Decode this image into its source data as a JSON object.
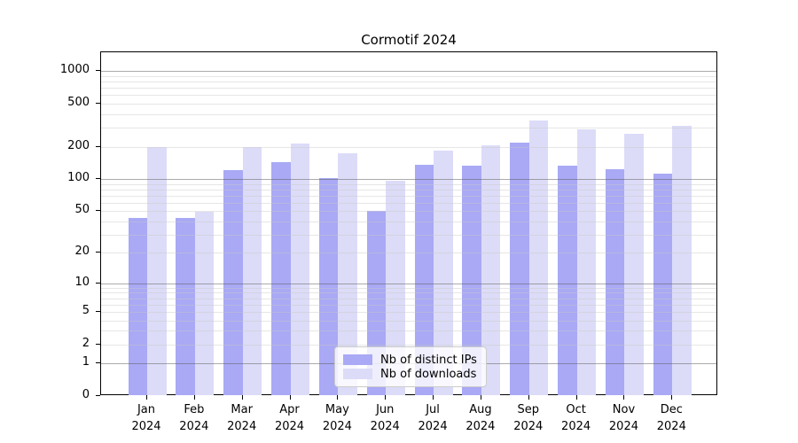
{
  "chart_data": {
    "type": "bar",
    "title": "Cormotif 2024",
    "categories": [
      "Jan",
      "Feb",
      "Mar",
      "Apr",
      "May",
      "Jun",
      "Jul",
      "Aug",
      "Sep",
      "Oct",
      "Nov",
      "Dec"
    ],
    "year_label": "2024",
    "series": [
      {
        "name": "Nb of distinct IPs",
        "color": "#a9a9f5",
        "values": [
          43,
          43,
          122,
          144,
          103,
          50,
          135,
          134,
          219,
          132,
          123,
          112
        ]
      },
      {
        "name": "Nb of downloads",
        "color": "#dcdcf8",
        "values": [
          200,
          49,
          200,
          212,
          173,
          97,
          184,
          206,
          352,
          291,
          264,
          312
        ]
      }
    ],
    "y_axis": {
      "scale": "log1p",
      "tick_values": [
        0,
        1,
        2,
        5,
        10,
        20,
        50,
        100,
        200,
        500,
        1000
      ],
      "major_grid_values": [
        1,
        10,
        100,
        1000
      ],
      "ylim": [
        0,
        1490
      ]
    },
    "legend_position": "lower center",
    "grid": true
  },
  "colors": {
    "background": "#ffffff",
    "bar_distinct_ips": "#a9a9f5",
    "bar_downloads": "#dcdcf8",
    "grid_major": "rgba(90,90,90,0.5)",
    "grid_minor": "rgba(200,200,200,0.45)",
    "spine": "#000000",
    "text": "#000000"
  }
}
